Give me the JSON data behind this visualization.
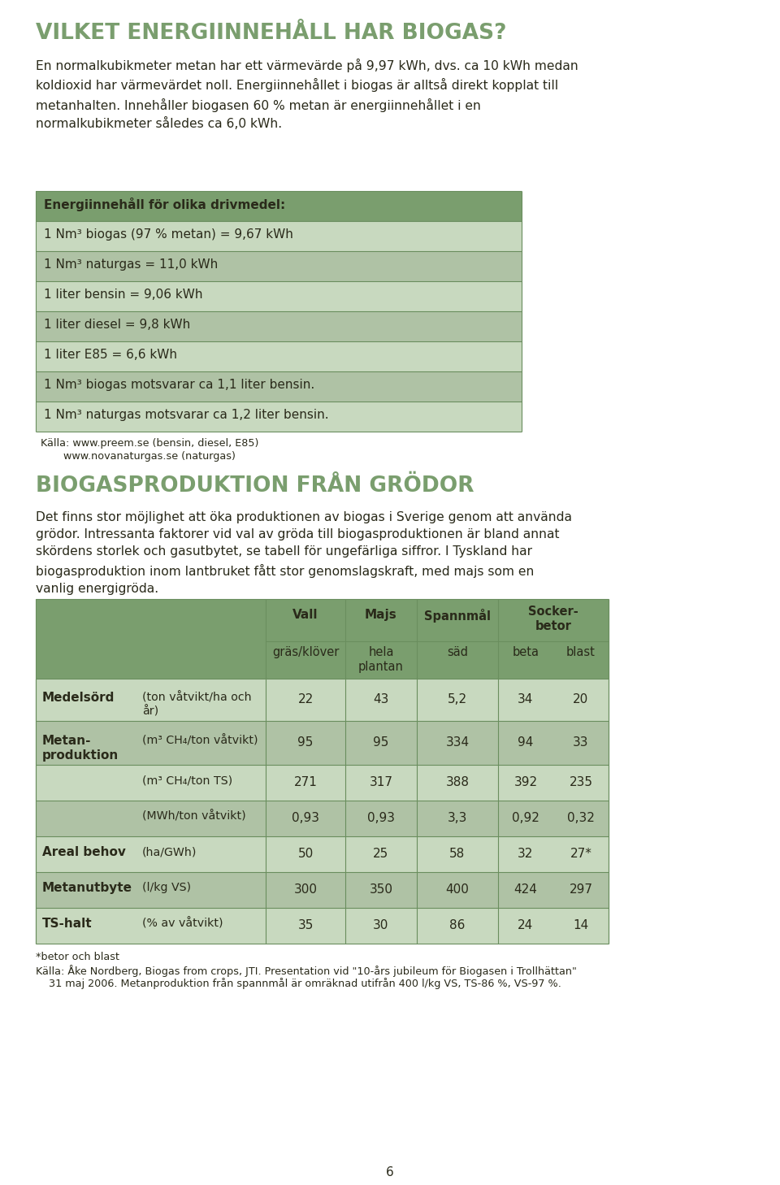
{
  "bg_color": "#ffffff",
  "title1": "VILKET ENERGIINNEHÅLL HAR BIOGAS?",
  "title1_color": "#7a9e6e",
  "body1": "En normalkubikmeter metan har ett värmevärde på 9,97 kWh, dvs. ca 10 kWh medan\nkoldioxid har värmevärdet noll. Energiinnehållet i biogas är alltså direkt kopplat till\nmetanhalten. Innehåller biogasen 60 % metan är energiinnehållet i en\nnormalkubikmeter således ca 6,0 kWh.",
  "body_color": "#2a2a1a",
  "table1_header": "Energiinnehåll för olika drivmedel:",
  "table1_rows": [
    "1 Nm³ biogas (97 % metan) = 9,67 kWh",
    "1 Nm³ naturgas = 11,0 kWh",
    "1 liter bensin = 9,06 kWh",
    "1 liter diesel = 9,8 kWh",
    "1 liter E85 = 6,6 kWh",
    "1 Nm³ biogas motsvarar ca 1,1 liter bensin.",
    "1 Nm³ naturgas motsvarar ca 1,2 liter bensin."
  ],
  "table1_header_bg": "#7a9e6e",
  "table1_row_bg_light": "#c8d9bf",
  "table1_row_bg_dark": "#afc2a5",
  "table1_text_color": "#2a2a1a",
  "source1_line1": "Källa: www.preem.se (bensin, diesel, E85)",
  "source1_line2": "       www.novanaturgas.se (naturgas)",
  "title2": "BIOGASPRODUKTION FRÅN GRÖDOR",
  "title2_color": "#7a9e6e",
  "body2": "Det finns stor möjlighet att öka produktionen av biogas i Sverige genom att använda\ngrödor. Intressanta faktorer vid val av gröda till biogasproduktionen är bland annat\nskördens storlek och gasutbytet, se tabell för ungefärliga siffror. I Tyskland har\nbiogasproduktion inom lantbruket fått stor genomslagskraft, med majs som en\nvanlig energigröda.",
  "table2_header_bg": "#7a9e6e",
  "table2_row_bg_light": "#c8d9bf",
  "table2_row_bg_dark": "#afc2a5",
  "table2_data": [
    [
      "Medelsörd",
      "(ton våtvikt/ha och\når)",
      "22",
      "43",
      "5,2",
      "34",
      "20"
    ],
    [
      "Metan-\nproduktion",
      "(m³ CH₄/ton våtvikt)",
      "95",
      "95",
      "334",
      "94",
      "33"
    ],
    [
      "",
      "(m³ CH₄/ton TS)",
      "271",
      "317",
      "388",
      "392",
      "235"
    ],
    [
      "",
      "(MWh/ton våtvikt)",
      "0,93",
      "0,93",
      "3,3",
      "0,92",
      "0,32"
    ],
    [
      "Areal behov",
      "(ha/GWh)",
      "50",
      "25",
      "58",
      "32",
      "27*"
    ],
    [
      "Metanutbyte",
      "(l/kg VS)",
      "300",
      "350",
      "400",
      "424",
      "297"
    ],
    [
      "TS-halt",
      "(% av våtvikt)",
      "35",
      "30",
      "86",
      "24",
      "14"
    ]
  ],
  "source2_line1": "*betor och blast",
  "source2_line2": "Källa: Åke Nordberg, Biogas from crops, JTI. Presentation vid \"10-års jubileum för Biogasen i Trollhättan\"",
  "source2_line3": "    31 maj 2006. Metanproduktion från spannmål är omräknad utifrån 400 l/kg VS, TS-86 %, VS-97 %.",
  "page_number": "6",
  "line_color": "#6a8e5e"
}
